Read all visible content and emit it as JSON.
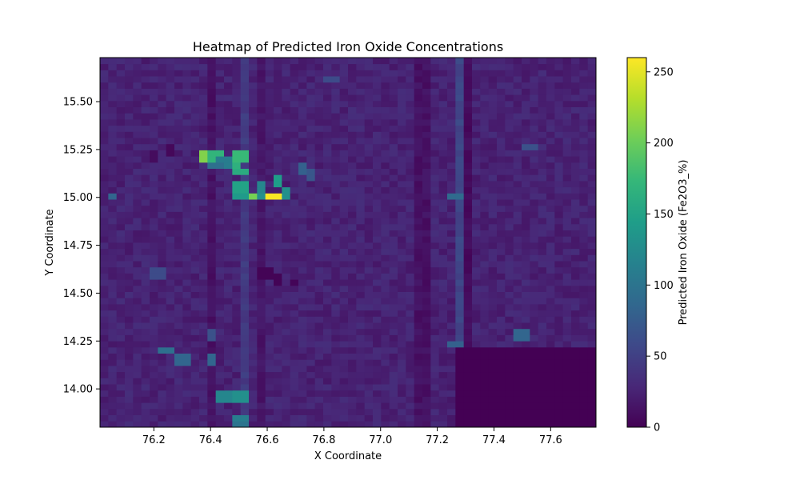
{
  "chart_data": {
    "type": "heatmap",
    "title": "Heatmap of Predicted Iron Oxide Concentrations",
    "xlabel": "X Coordinate",
    "ylabel": "Y Coordinate",
    "xlim": [
      76.01,
      77.76
    ],
    "ylim": [
      13.8,
      15.73
    ],
    "x_ticks": [
      76.2,
      76.4,
      76.6,
      76.8,
      77.0,
      77.2,
      77.4,
      77.6
    ],
    "x_tick_labels": [
      "76.2",
      "76.4",
      "76.6",
      "76.8",
      "77.0",
      "77.2",
      "77.4",
      "77.6"
    ],
    "y_ticks": [
      14.0,
      14.25,
      14.5,
      14.75,
      15.0,
      15.25,
      15.5
    ],
    "y_tick_labels": [
      "14.00",
      "14.25",
      "14.50",
      "14.75",
      "15.00",
      "15.25",
      "15.50"
    ],
    "grid": {
      "cols": 60,
      "rows": 60,
      "base_value": 25,
      "dark_block": {
        "x_range": [
          77.26,
          77.76
        ],
        "y_range": [
          13.8,
          14.23
        ],
        "value": 0
      },
      "stripes": [
        {
          "x": 76.405,
          "value": 12
        },
        {
          "x": 76.51,
          "value": 45
        },
        {
          "x": 76.58,
          "value": 15
        },
        {
          "x": 77.15,
          "value": 12
        },
        {
          "x": 77.27,
          "value": 55
        },
        {
          "x": 77.31,
          "value": 8
        }
      ],
      "hotspots": [
        {
          "x": 76.62,
          "y": 15.01,
          "value": 258
        },
        {
          "x": 76.54,
          "y": 15.01,
          "value": 205
        },
        {
          "x": 76.37,
          "y": 15.21,
          "value": 210
        },
        {
          "x": 76.42,
          "y": 15.21,
          "value": 170
        },
        {
          "x": 76.51,
          "y": 15.21,
          "value": 175
        },
        {
          "x": 76.48,
          "y": 15.16,
          "value": 165
        },
        {
          "x": 76.51,
          "y": 15.13,
          "value": 160
        },
        {
          "x": 76.51,
          "y": 15.06,
          "value": 150
        },
        {
          "x": 76.58,
          "y": 15.06,
          "value": 120
        },
        {
          "x": 76.64,
          "y": 15.08,
          "value": 145
        },
        {
          "x": 76.66,
          "y": 15.03,
          "value": 130
        },
        {
          "x": 76.5,
          "y": 15.01,
          "value": 140
        },
        {
          "x": 76.58,
          "y": 15.01,
          "value": 130
        },
        {
          "x": 76.45,
          "y": 15.18,
          "value": 110
        },
        {
          "x": 76.42,
          "y": 15.16,
          "value": 95
        },
        {
          "x": 76.72,
          "y": 15.15,
          "value": 80
        },
        {
          "x": 76.76,
          "y": 15.12,
          "value": 70
        },
        {
          "x": 76.05,
          "y": 15.01,
          "value": 85
        },
        {
          "x": 77.26,
          "y": 15.01,
          "value": 90
        },
        {
          "x": 77.27,
          "y": 14.23,
          "value": 80
        },
        {
          "x": 76.45,
          "y": 13.96,
          "value": 120
        },
        {
          "x": 76.51,
          "y": 13.96,
          "value": 130
        },
        {
          "x": 76.51,
          "y": 13.85,
          "value": 110
        },
        {
          "x": 76.51,
          "y": 13.81,
          "value": 100
        },
        {
          "x": 76.25,
          "y": 14.21,
          "value": 95
        },
        {
          "x": 76.3,
          "y": 14.15,
          "value": 85
        },
        {
          "x": 76.4,
          "y": 14.15,
          "value": 85
        },
        {
          "x": 76.22,
          "y": 14.6,
          "value": 60
        },
        {
          "x": 76.4,
          "y": 14.28,
          "value": 65
        },
        {
          "x": 77.5,
          "y": 14.28,
          "value": 85
        },
        {
          "x": 77.53,
          "y": 15.26,
          "value": 65
        },
        {
          "x": 76.82,
          "y": 15.61,
          "value": 60
        },
        {
          "x": 76.64,
          "y": 14.57,
          "value": 2
        },
        {
          "x": 76.6,
          "y": 14.61,
          "value": 2
        },
        {
          "x": 76.7,
          "y": 14.55,
          "value": 3
        },
        {
          "x": 76.26,
          "y": 15.25,
          "value": 5
        },
        {
          "x": 76.2,
          "y": 15.22,
          "value": 8
        }
      ]
    },
    "colorbar": {
      "label": "Predicted Iron Oxide (Fe2O3_%)",
      "vmin": 0,
      "vmax": 260,
      "ticks": [
        0,
        50,
        100,
        150,
        200,
        250
      ],
      "tick_labels": [
        "0",
        "50",
        "100",
        "150",
        "200",
        "250"
      ],
      "colormap": "viridis",
      "colormap_stops": [
        "#440154",
        "#482878",
        "#3e4989",
        "#31688e",
        "#26828e",
        "#1f9e89",
        "#35b779",
        "#6ece58",
        "#b5de2b",
        "#fde725"
      ]
    }
  }
}
